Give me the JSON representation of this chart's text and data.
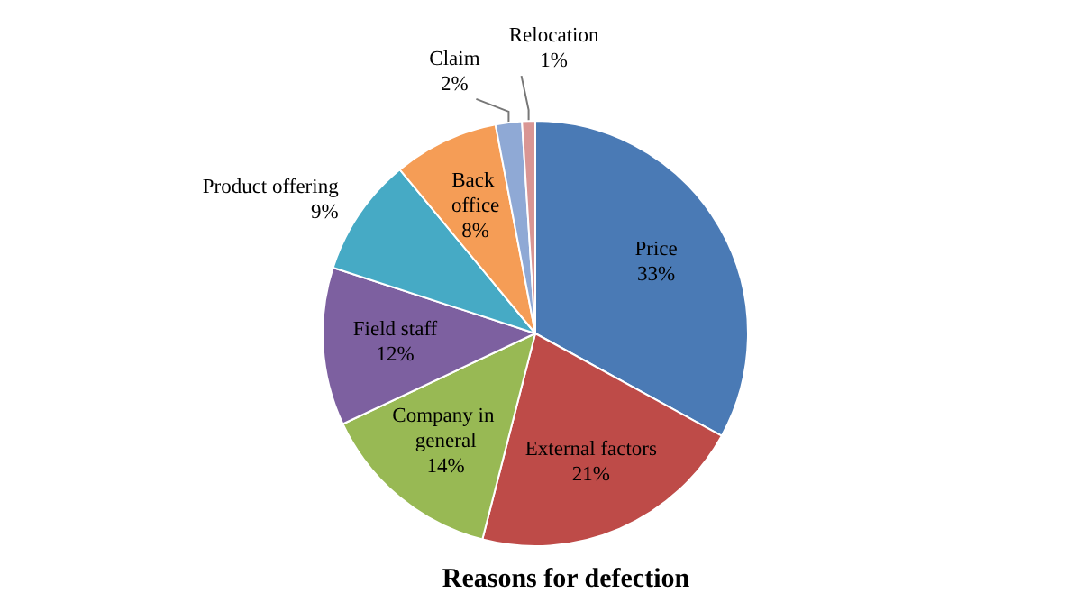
{
  "chart_data": {
    "type": "pie",
    "title": "Reasons for defection",
    "categories": [
      "Price",
      "External factors",
      "Company in general",
      "Field staff",
      "Product offering",
      "Back office",
      "Claim",
      "Relocation"
    ],
    "values": [
      33,
      21,
      14,
      12,
      9,
      8,
      2,
      1
    ],
    "value_labels": [
      "33%",
      "21%",
      "14%",
      "12%",
      "9%",
      "8%",
      "2%",
      "1%"
    ],
    "colors": [
      "#4a7ab5",
      "#be4b48",
      "#98b954",
      "#7d60a0",
      "#46aac5",
      "#f59d56",
      "#8fa9d5",
      "#d99694"
    ],
    "legend": false
  }
}
